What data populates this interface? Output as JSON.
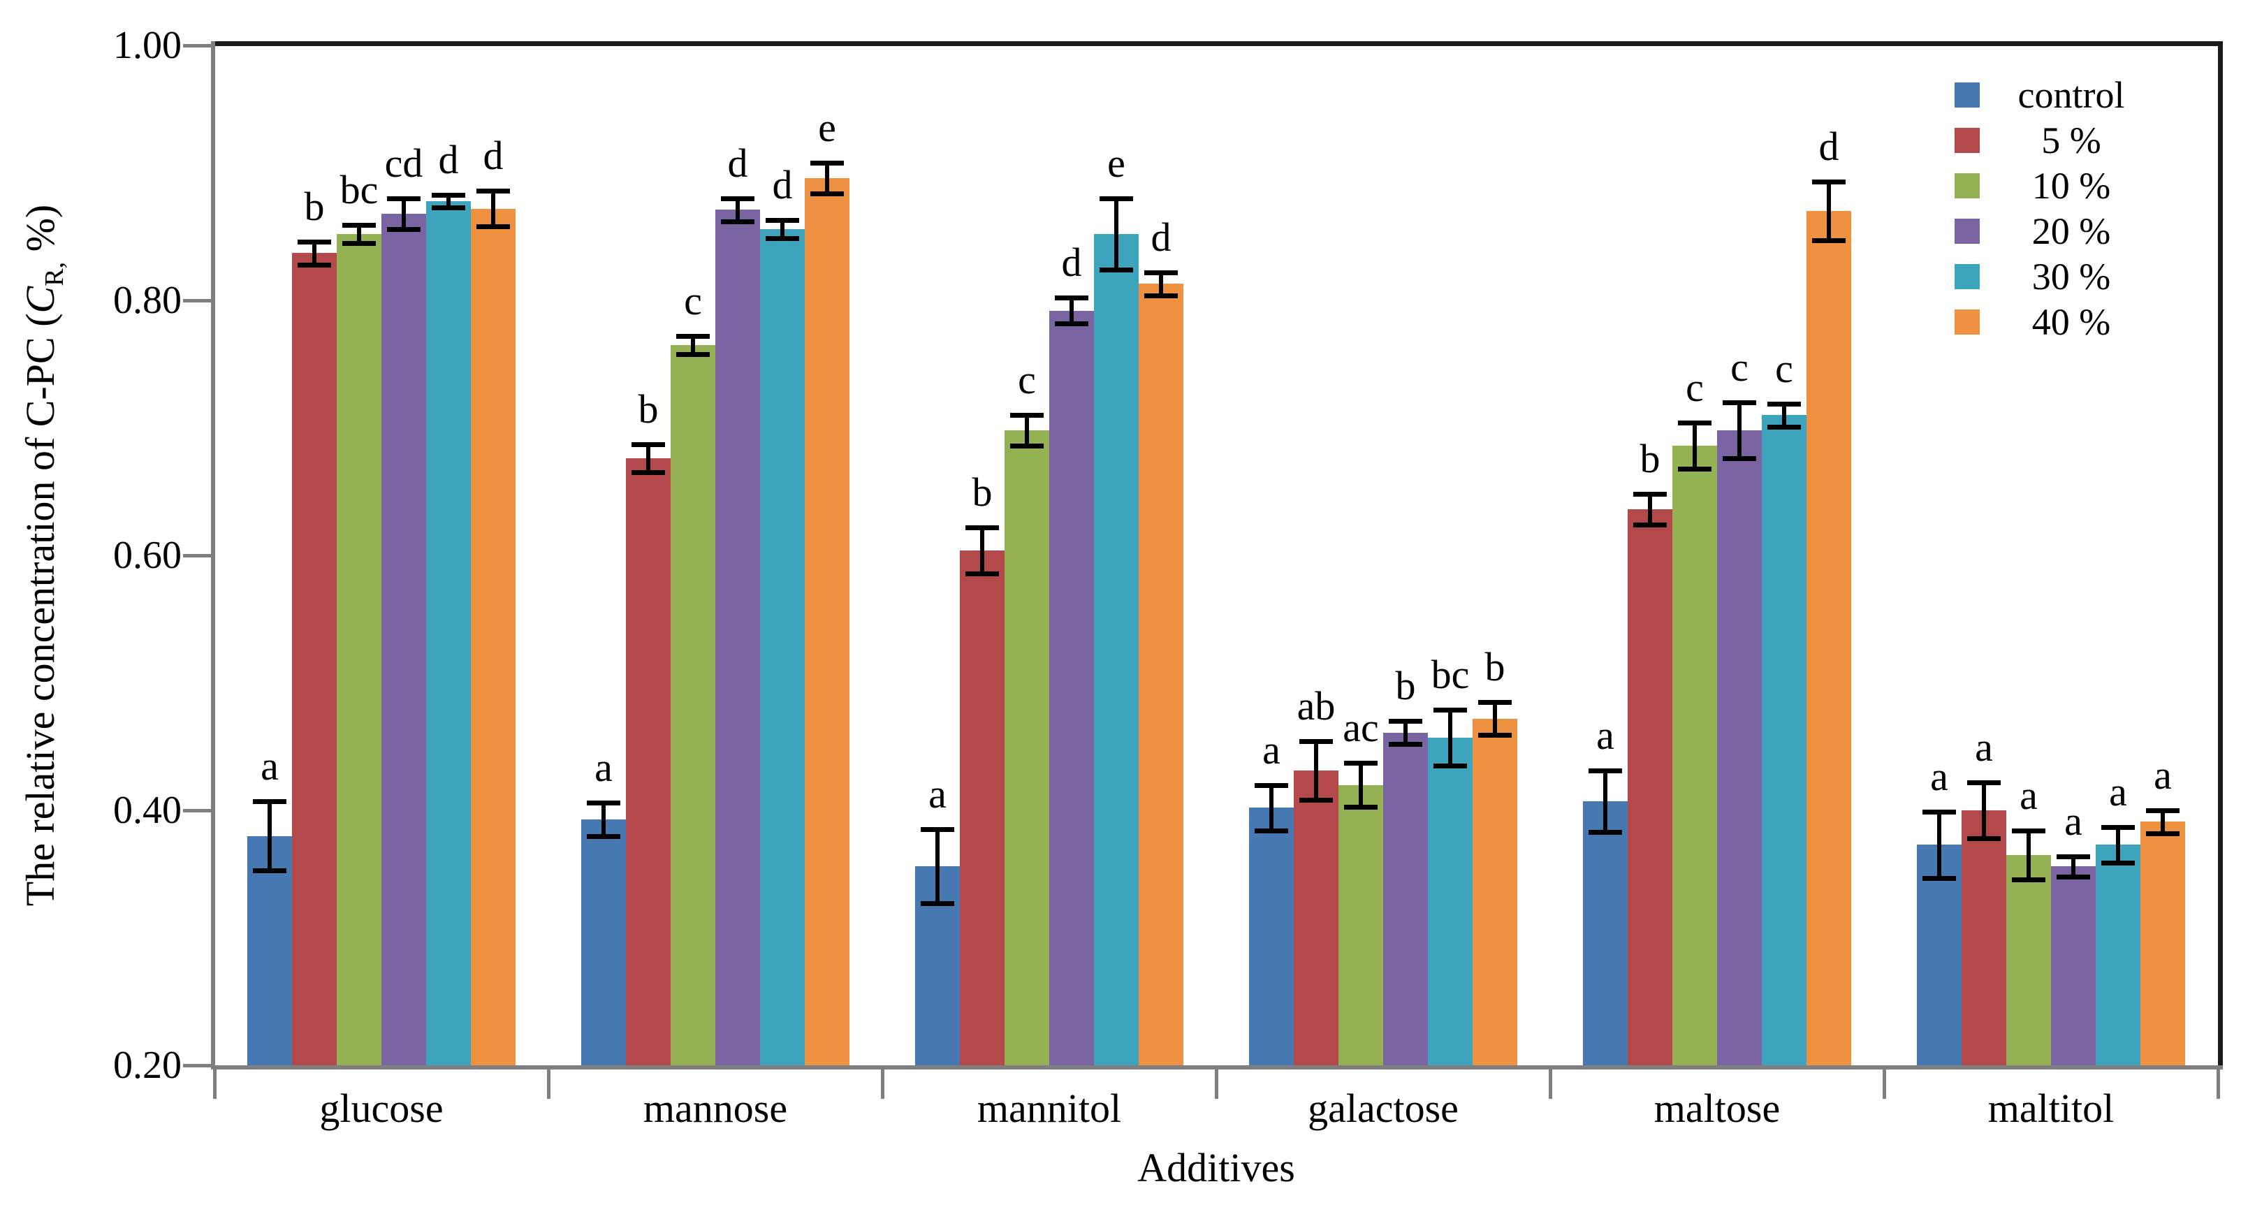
{
  "figure": {
    "background": "#ffffff",
    "frame_dark_color": "#1a1a1a",
    "axis_gray_color": "#7f7f7f",
    "error_bar_color": "#000000",
    "significance_letter_color": "#000000"
  },
  "chart_data": {
    "type": "bar",
    "title": "",
    "xlabel": "Additives",
    "ylabel": {
      "prefix": "The relative concentration of C-PC (",
      "var": "C",
      "sub": "R,",
      "suffix": " %)"
    },
    "ylim": [
      0.2,
      1.0
    ],
    "grid": false,
    "legend_position": "top-right-inside",
    "yticks": [
      {
        "value": 1.0,
        "label": "1.00"
      },
      {
        "value": 0.8,
        "label": "0.80"
      },
      {
        "value": 0.6,
        "label": "0.60"
      },
      {
        "value": 0.4,
        "label": "0.40"
      },
      {
        "value": 0.2,
        "label": "0.20"
      }
    ],
    "categories": [
      "glucose",
      "mannose",
      "mannitol",
      "galactose",
      "maltose",
      "maltitol"
    ],
    "series": [
      {
        "name": "control",
        "color": "#4679B2",
        "values": [
          0.38,
          0.393,
          0.356,
          0.402,
          0.407,
          0.373
        ],
        "errors": [
          0.027,
          0.013,
          0.029,
          0.018,
          0.024,
          0.026
        ],
        "letters": [
          "a",
          "a",
          "a",
          "a",
          "a",
          "a"
        ]
      },
      {
        "name": "5 %",
        "color": "#B4494B",
        "values": [
          0.837,
          0.676,
          0.604,
          0.431,
          0.636,
          0.4
        ],
        "errors": [
          0.009,
          0.011,
          0.018,
          0.023,
          0.012,
          0.022
        ],
        "letters": [
          "b",
          "b",
          "b",
          "ab",
          "b",
          "a"
        ]
      },
      {
        "name": "10 %",
        "color": "#94B153",
        "values": [
          0.852,
          0.765,
          0.698,
          0.42,
          0.686,
          0.365
        ],
        "errors": [
          0.007,
          0.007,
          0.012,
          0.017,
          0.018,
          0.019
        ],
        "letters": [
          "bc",
          "c",
          "c",
          "ac",
          "c",
          "a"
        ]
      },
      {
        "name": "20 %",
        "color": "#7B64A2",
        "values": [
          0.868,
          0.871,
          0.792,
          0.461,
          0.698,
          0.356
        ],
        "errors": [
          0.012,
          0.009,
          0.01,
          0.009,
          0.022,
          0.008
        ],
        "letters": [
          "cd",
          "d",
          "d",
          "b",
          "c",
          "a"
        ]
      },
      {
        "name": "30 %",
        "color": "#3EA3BC",
        "values": [
          0.878,
          0.856,
          0.852,
          0.457,
          0.71,
          0.373
        ],
        "errors": [
          0.005,
          0.007,
          0.028,
          0.022,
          0.009,
          0.014
        ],
        "letters": [
          "d",
          "d",
          "e",
          "bc",
          "c",
          "a"
        ]
      },
      {
        "name": "40 %",
        "color": "#EE9140",
        "values": [
          0.872,
          0.896,
          0.813,
          0.472,
          0.87,
          0.391
        ],
        "errors": [
          0.014,
          0.012,
          0.009,
          0.013,
          0.023,
          0.009
        ],
        "letters": [
          "d",
          "e",
          "d",
          "b",
          "d",
          "a"
        ]
      }
    ]
  }
}
